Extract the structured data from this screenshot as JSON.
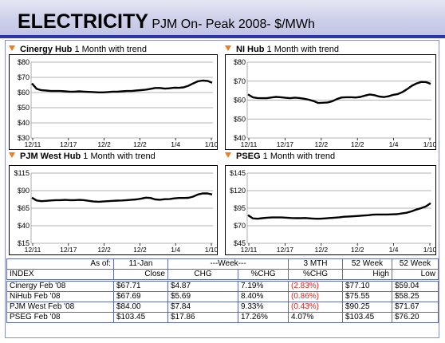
{
  "header": {
    "title_big": "ELECTRICITY",
    "title_sub": "PJM On- Peak 2008- $/MWh"
  },
  "chart_data": [
    {
      "type": "line",
      "title_name": "Cinergy Hub",
      "title_rest": "1 Month with trend",
      "tick_labels_y": [
        "$80",
        "$70",
        "$60",
        "$50",
        "$40",
        "$30"
      ],
      "tick_labels_x": [
        "12/11",
        "12/17",
        "12/2",
        "12/2",
        "1/4",
        "1/10"
      ],
      "ylim": [
        30,
        80
      ],
      "y_ticks": [
        80,
        70,
        60,
        50,
        40,
        30
      ],
      "series": [
        {
          "values": [
            66,
            62.5,
            61.5,
            61.3,
            61,
            61,
            61,
            60.8,
            60.6,
            60.6,
            60.8,
            60.6,
            60.4,
            60.3,
            60.1,
            60.1,
            60.3,
            60.6,
            60.6,
            60.8,
            61,
            61,
            61.3,
            61.6,
            61.9,
            62.4,
            63,
            63,
            62.6,
            62.8,
            63.2,
            63.1,
            63.4,
            64.5,
            66,
            67.4,
            67.9,
            67.7,
            66.5
          ]
        }
      ]
    },
    {
      "type": "line",
      "title_name": "NI Hub",
      "title_rest": "1 Month with trend",
      "tick_labels_y": [
        "$80",
        "$70",
        "$60",
        "$50",
        "$40"
      ],
      "tick_labels_x": [
        "12/11",
        "12/17",
        "12/2",
        "12/2",
        "1/4",
        "1/10"
      ],
      "ylim": [
        40,
        80
      ],
      "y_ticks": [
        80,
        70,
        60,
        50,
        40
      ],
      "series": [
        {
          "values": [
            63,
            61.5,
            61.1,
            61,
            61,
            61.4,
            61.7,
            61.5,
            61.2,
            61,
            61.3,
            61.1,
            60.7,
            60.2,
            59.5,
            58.5,
            58.6,
            58.8,
            59.4,
            60.6,
            61.4,
            61.5,
            61.5,
            61.4,
            61.7,
            62.4,
            63,
            62.6,
            61.9,
            61.6,
            62,
            62.8,
            63.2,
            64.3,
            65.8,
            67.6,
            68.8,
            69.6,
            69.5,
            68.6
          ]
        }
      ]
    },
    {
      "type": "line",
      "title_name": "PJM West Hub",
      "title_rest": "1 Month with trend",
      "tick_labels_y": [
        "$115",
        "$90",
        "$65",
        "$40",
        "$15"
      ],
      "tick_labels_x": [
        "12/11",
        "12/17",
        "12/2",
        "12/2",
        "1/4",
        "1/10"
      ],
      "ylim": [
        15,
        115
      ],
      "y_ticks": [
        115,
        90,
        65,
        40,
        15
      ],
      "series": [
        {
          "values": [
            80,
            76,
            75,
            75.5,
            76,
            76.5,
            76.5,
            76.8,
            76.5,
            76.5,
            76.8,
            76.5,
            75.5,
            74.5,
            74.2,
            74.5,
            75,
            75.5,
            75.8,
            76,
            76.5,
            77,
            77.5,
            78.5,
            80,
            79.5,
            77.5,
            77,
            77.8,
            78,
            79,
            79.5,
            79.5,
            79.8,
            81.5,
            84.5,
            86,
            86,
            84.5
          ]
        }
      ]
    },
    {
      "type": "line",
      "title_name": "PSEG",
      "title_rest": "1 Month with trend",
      "tick_labels_y": [
        "$145",
        "$120",
        "$95",
        "$70",
        "$45"
      ],
      "tick_labels_x": [
        "12/11",
        "12/17",
        "12/2",
        "12/2",
        "1/4",
        "1/10"
      ],
      "ylim": [
        45,
        145
      ],
      "y_ticks": [
        145,
        120,
        95,
        70,
        45
      ],
      "series": [
        {
          "values": [
            85,
            80.5,
            80,
            80.8,
            81.5,
            81.8,
            81.8,
            81.8,
            81.5,
            81,
            80.8,
            80.8,
            81,
            80.5,
            80,
            80,
            80.5,
            81,
            81.5,
            82,
            82.8,
            83.2,
            83.5,
            84,
            84.5,
            85,
            85.8,
            86,
            86,
            86,
            86.2,
            86.5,
            87.5,
            88.5,
            90.5,
            93,
            95,
            97.5,
            102
          ]
        }
      ]
    }
  ],
  "table": {
    "row_asof": [
      "As of:",
      "11-Jan",
      "---Week---",
      "3 MTH",
      "52 Week",
      "52 Week"
    ],
    "row_headers": [
      "INDEX",
      "Close",
      "CHG",
      "%CHG",
      "%CHG",
      "High",
      "Low"
    ],
    "rows": [
      {
        "index": "Cinergy Feb '08",
        "close": "$67.71",
        "chg": "$4.87",
        "pchg": "7.19%",
        "mth": "(2.83%)",
        "mth_negative": true,
        "high": "$77.10",
        "low": "$59.04"
      },
      {
        "index": "NiHub Feb '08",
        "close": "$67.69",
        "chg": "$5.69",
        "pchg": "8.40%",
        "mth": "(0.86%)",
        "mth_negative": true,
        "high": "$75.55",
        "low": "$58.25"
      },
      {
        "index": "PJM  West Feb '08",
        "close": "$84.00",
        "chg": "$7.84",
        "pchg": "9.33%",
        "mth": "(0.43%)",
        "mth_negative": true,
        "high": "$90.25",
        "low": "$71.67"
      },
      {
        "index": "PSEG Feb '08",
        "close": "$103.45",
        "chg": "$17.86",
        "pchg": "17.26%",
        "mth": "4.07%",
        "mth_negative": false,
        "high": "$103.45",
        "low": "$76.20"
      }
    ],
    "negative_color": "#e2231a"
  },
  "colors": {
    "accent_line": "#2b36a8",
    "marker": "#f07d1a",
    "table_border": "#5d6db0"
  }
}
